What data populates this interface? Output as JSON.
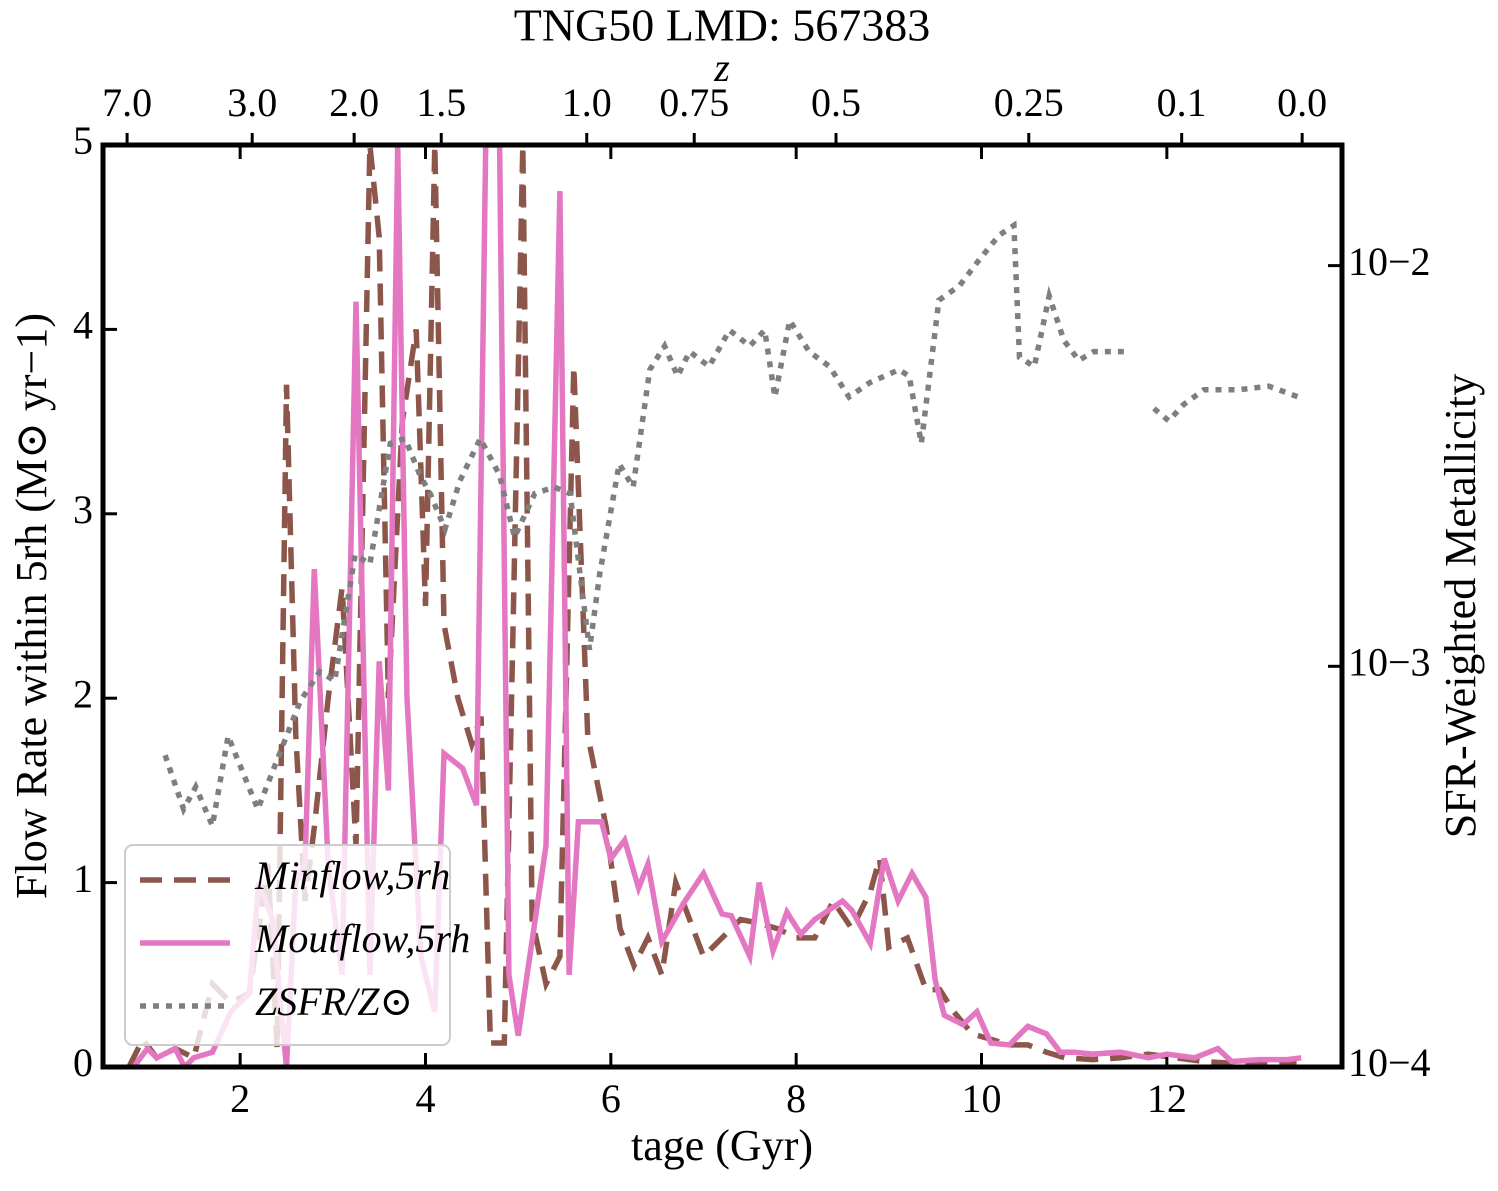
{
  "chart_data": {
    "type": "line",
    "title": "TNG50 LMD: 567383",
    "xlabel": "tage (Gyr)",
    "ylabel": "Flow Rate within 5rh (M⊙ yr−1)",
    "y2label": "SFR-Weighted Metallicity",
    "x2label": "z",
    "xlim": [
      0.52,
      13.89
    ],
    "xticks": [
      2,
      4,
      6,
      8,
      10,
      12
    ],
    "ylim": [
      0,
      5
    ],
    "yticks": [
      0,
      1,
      2,
      3,
      4,
      5
    ],
    "y2lim": [
      0.0001,
      0.02
    ],
    "y2scale": "log",
    "y2ticks": [
      {
        "value": 0.0001,
        "label": "10−4"
      },
      {
        "value": 0.001,
        "label": "10−3"
      },
      {
        "value": 0.01,
        "label": "10−2"
      }
    ],
    "x2ticks": [
      {
        "value": 0.78,
        "label": "7.0"
      },
      {
        "value": 2.13,
        "label": "3.0"
      },
      {
        "value": 3.23,
        "label": "2.0"
      },
      {
        "value": 4.17,
        "label": "1.5"
      },
      {
        "value": 5.74,
        "label": "1.0"
      },
      {
        "value": 6.9,
        "label": "0.75"
      },
      {
        "value": 8.43,
        "label": "0.5"
      },
      {
        "value": 10.51,
        "label": "0.25"
      },
      {
        "value": 12.16,
        "label": "0.1"
      },
      {
        "value": 13.46,
        "label": "0.0"
      }
    ],
    "legend": "lower left",
    "series": [
      {
        "name": "Minflow,5rh",
        "color": "#8c564b",
        "dash": "dashed",
        "x": [
          0.8,
          0.95,
          1.1,
          1.3,
          1.5,
          1.7,
          1.9,
          2.1,
          2.3,
          2.4,
          2.5,
          2.6,
          2.7,
          2.8,
          2.95,
          3.1,
          3.25,
          3.4,
          3.5,
          3.6,
          3.75,
          3.9,
          4.0,
          4.1,
          4.2,
          4.35,
          4.5,
          4.6,
          4.7,
          4.85,
          4.95,
          5.05,
          5.15,
          5.3,
          5.45,
          5.6,
          5.75,
          5.95,
          6.1,
          6.25,
          6.4,
          6.55,
          6.7,
          6.85,
          7.0,
          7.2,
          7.4,
          7.6,
          7.8,
          8.0,
          8.2,
          8.4,
          8.6,
          8.8,
          8.9,
          9.0,
          9.2,
          9.4,
          9.55,
          9.7,
          9.9,
          10.1,
          10.3,
          10.5,
          10.7,
          10.9,
          11.2,
          11.5,
          11.8,
          12.1,
          12.4,
          12.7,
          13.0,
          13.4
        ],
        "values": [
          0,
          0.15,
          0.05,
          0.1,
          0.05,
          0.45,
          0.35,
          0.4,
          1.1,
          0.1,
          3.7,
          1.8,
          0.9,
          1.3,
          2.0,
          2.6,
          1.2,
          5.0,
          4.5,
          2.0,
          3.5,
          4.0,
          2.5,
          5.0,
          2.4,
          2.0,
          1.75,
          1.9,
          0.13,
          0.13,
          2.5,
          5.0,
          0.8,
          0.45,
          0.6,
          3.8,
          1.8,
          1.3,
          0.75,
          0.55,
          0.7,
          0.5,
          1.0,
          0.8,
          0.6,
          0.7,
          0.8,
          0.78,
          0.75,
          0.7,
          0.7,
          0.9,
          0.75,
          0.95,
          1.13,
          0.65,
          0.7,
          0.42,
          0.42,
          0.3,
          0.18,
          0.15,
          0.12,
          0.12,
          0.08,
          0.05,
          0.04,
          0.05,
          0.07,
          0.05,
          0.03,
          0.02,
          0.02,
          0.02
        ]
      },
      {
        "name": "Moutflow,5rh",
        "color": "#e377c2",
        "dash": "solid",
        "x": [
          0.85,
          1.0,
          1.1,
          1.3,
          1.4,
          1.5,
          1.7,
          1.9,
          2.1,
          2.2,
          2.35,
          2.5,
          2.6,
          2.7,
          2.8,
          2.95,
          3.1,
          3.25,
          3.4,
          3.5,
          3.6,
          3.7,
          3.8,
          3.95,
          4.1,
          4.2,
          4.4,
          4.55,
          4.65,
          4.8,
          4.9,
          5.0,
          5.3,
          5.45,
          5.55,
          5.65,
          5.9,
          6.0,
          6.15,
          6.3,
          6.4,
          6.55,
          6.8,
          7.0,
          7.2,
          7.3,
          7.5,
          7.6,
          7.75,
          7.9,
          8.05,
          8.2,
          8.35,
          8.5,
          8.6,
          8.8,
          8.95,
          9.1,
          9.25,
          9.4,
          9.5,
          9.6,
          9.8,
          9.95,
          10.1,
          10.3,
          10.5,
          10.7,
          10.85,
          11.0,
          11.2,
          11.5,
          11.8,
          12.0,
          12.3,
          12.55,
          12.7,
          13.0,
          13.3,
          13.45
        ],
        "values": [
          0,
          0.1,
          0.05,
          0.1,
          0,
          0.05,
          0.08,
          0.3,
          0.4,
          1.0,
          0.8,
          0,
          1.0,
          1.1,
          2.7,
          1.1,
          0.5,
          4.15,
          0.5,
          2.2,
          1.5,
          5.0,
          2.0,
          0.6,
          0.3,
          1.7,
          1.62,
          1.42,
          5.0,
          5.0,
          0.5,
          0.17,
          1.2,
          4.75,
          0.5,
          1.33,
          1.33,
          1.13,
          1.23,
          0.97,
          1.1,
          0.68,
          0.9,
          1.05,
          0.83,
          0.82,
          0.6,
          1.0,
          0.63,
          0.84,
          0.72,
          0.8,
          0.85,
          0.9,
          0.85,
          0.67,
          1.13,
          0.9,
          1.05,
          0.92,
          0.47,
          0.28,
          0.23,
          0.3,
          0.13,
          0.12,
          0.22,
          0.18,
          0.08,
          0.08,
          0.07,
          0.08,
          0.05,
          0.07,
          0.05,
          0.1,
          0.03,
          0.04,
          0.04,
          0.05
        ]
      },
      {
        "name": "ZSFR/Z⊙",
        "color": "#7f7f7f",
        "dash": "dotted",
        "axis": "y2",
        "x": [
          1.19,
          1.39,
          1.52,
          1.7,
          1.87,
          2.19,
          2.65,
          2.86,
          3.02,
          3.24,
          3.4,
          3.62,
          3.78,
          3.94,
          4.05,
          4.21,
          4.37,
          4.59,
          4.8,
          4.96,
          5.18,
          5.39,
          5.56,
          5.77,
          5.88,
          6.09,
          6.24,
          6.42,
          6.58,
          6.72,
          6.85,
          7.06,
          7.28,
          7.5,
          7.66,
          7.77,
          7.93,
          8.14,
          8.36,
          8.57,
          8.79,
          9.11,
          9.22,
          9.35,
          9.54,
          9.76,
          9.97,
          10.19,
          10.35,
          10.41,
          10.57,
          10.73,
          10.89,
          11.05,
          11.21,
          11.54,
          11.7,
          11.86,
          12.02,
          12.18,
          12.4,
          12.77,
          13.1,
          13.42
        ],
        "values": [
          0.0006,
          0.00044,
          0.0005,
          0.0004,
          0.00067,
          0.00044,
          0.00082,
          0.00097,
          0.00092,
          0.0019,
          0.0018,
          0.0036,
          0.0037,
          0.003,
          0.0027,
          0.0022,
          0.0029,
          0.0037,
          0.003,
          0.0021,
          0.0027,
          0.0028,
          0.0027,
          0.0011,
          0.0017,
          0.0032,
          0.0028,
          0.0055,
          0.0063,
          0.0053,
          0.0061,
          0.0056,
          0.0069,
          0.0063,
          0.0069,
          0.0047,
          0.0073,
          0.0061,
          0.0056,
          0.0047,
          0.0051,
          0.0055,
          0.0053,
          0.0036,
          0.0082,
          0.0089,
          0.0103,
          0.0119,
          0.0126,
          0.0059,
          0.0056,
          0.0084,
          0.0065,
          0.0058,
          0.0061,
          0.0061,
          null,
          0.0044,
          0.0041,
          0.0045,
          0.0049,
          0.0049,
          0.005,
          0.0047
        ]
      }
    ]
  }
}
